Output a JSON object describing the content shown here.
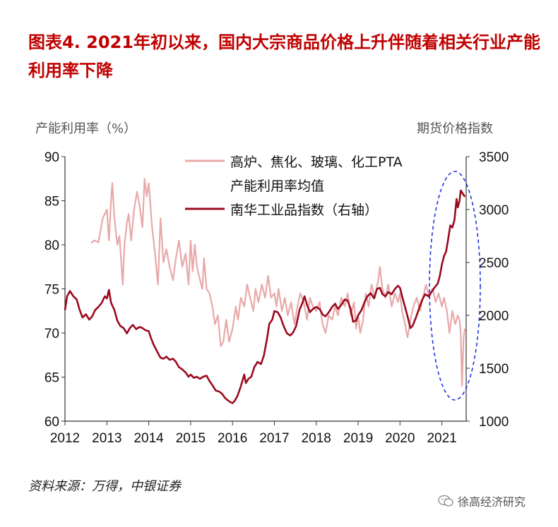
{
  "title": "图表4.  2021年初以来，国内大宗商品价格上升伴随着相关行业产能利用率下降",
  "left_axis_title": "产能利用率（%）",
  "right_axis_title": "期货价格指数",
  "source": "资料来源：万得，中银证券",
  "watermark": "徐高经济研究",
  "colors": {
    "title": "#c00000",
    "capacity_series": "#e8a9a9",
    "index_series": "#9b0a1e",
    "highlight": "#2233dd"
  },
  "chart_data": {
    "type": "line",
    "x_range": [
      2012.0,
      2021.58
    ],
    "x_ticks": [
      "2012",
      "2013",
      "2014",
      "2015",
      "2016",
      "2017",
      "2018",
      "2019",
      "2020",
      "2021"
    ],
    "y_left_ticks": [
      "60",
      "65",
      "70",
      "75",
      "80",
      "85",
      "90"
    ],
    "y_right_ticks": [
      "1000",
      "1500",
      "2000",
      "2500",
      "3000",
      "3500"
    ],
    "y_left_range": [
      60,
      90
    ],
    "y_right_range": [
      1000,
      3500
    ],
    "legend": [
      {
        "label_lines": [
          "高炉、焦化、玻璃、化工PTA",
          "产能利用率均值"
        ],
        "axis": "left"
      },
      {
        "label_lines": [
          "南华工业品指数（右轴）"
        ],
        "axis": "right"
      }
    ],
    "series": [
      {
        "name": "高炉、焦化、玻璃、化工PTA产能利用率均值",
        "axis": "left",
        "points": [
          [
            2012.62,
            80.2
          ],
          [
            2012.7,
            80.5
          ],
          [
            2012.8,
            80.3
          ],
          [
            2012.9,
            83.0
          ],
          [
            2013.0,
            84.0
          ],
          [
            2013.05,
            80.5
          ],
          [
            2013.1,
            85.0
          ],
          [
            2013.13,
            87.0
          ],
          [
            2013.18,
            83.0
          ],
          [
            2013.25,
            80.0
          ],
          [
            2013.3,
            81.0
          ],
          [
            2013.38,
            75.5
          ],
          [
            2013.42,
            80.0
          ],
          [
            2013.48,
            82.5
          ],
          [
            2013.52,
            83.5
          ],
          [
            2013.58,
            80.5
          ],
          [
            2013.65,
            84.0
          ],
          [
            2013.72,
            86.0
          ],
          [
            2013.78,
            84.5
          ],
          [
            2013.85,
            82.0
          ],
          [
            2013.9,
            87.5
          ],
          [
            2013.95,
            85.5
          ],
          [
            2014.0,
            87.0
          ],
          [
            2014.08,
            82.0
          ],
          [
            2014.15,
            79.0
          ],
          [
            2014.22,
            75.5
          ],
          [
            2014.28,
            83.0
          ],
          [
            2014.35,
            78.0
          ],
          [
            2014.42,
            79.5
          ],
          [
            2014.5,
            77.5
          ],
          [
            2014.58,
            76.0
          ],
          [
            2014.65,
            78.5
          ],
          [
            2014.72,
            80.5
          ],
          [
            2014.8,
            77.5
          ],
          [
            2014.88,
            79.0
          ],
          [
            2014.95,
            75.5
          ],
          [
            2015.0,
            80.5
          ],
          [
            2015.05,
            77.0
          ],
          [
            2015.1,
            80.0
          ],
          [
            2015.15,
            77.5
          ],
          [
            2015.2,
            76.5
          ],
          [
            2015.28,
            75.0
          ],
          [
            2015.32,
            78.5
          ],
          [
            2015.38,
            75.0
          ],
          [
            2015.45,
            74.5
          ],
          [
            2015.52,
            73.0
          ],
          [
            2015.58,
            71.0
          ],
          [
            2015.65,
            72.0
          ],
          [
            2015.72,
            68.5
          ],
          [
            2015.78,
            69.0
          ],
          [
            2015.85,
            71.5
          ],
          [
            2015.92,
            69.0
          ],
          [
            2016.0,
            70.5
          ],
          [
            2016.08,
            73.0
          ],
          [
            2016.13,
            71.5
          ],
          [
            2016.2,
            74.0
          ],
          [
            2016.28,
            73.0
          ],
          [
            2016.35,
            75.5
          ],
          [
            2016.42,
            74.0
          ],
          [
            2016.5,
            72.5
          ],
          [
            2016.55,
            75.0
          ],
          [
            2016.62,
            73.5
          ],
          [
            2016.7,
            75.5
          ],
          [
            2016.78,
            74.0
          ],
          [
            2016.85,
            76.5
          ],
          [
            2016.92,
            74.0
          ],
          [
            2017.0,
            74.5
          ],
          [
            2017.05,
            73.0
          ],
          [
            2017.1,
            75.0
          ],
          [
            2017.18,
            72.5
          ],
          [
            2017.25,
            74.0
          ],
          [
            2017.32,
            72.0
          ],
          [
            2017.4,
            73.5
          ],
          [
            2017.48,
            71.0
          ],
          [
            2017.55,
            73.0
          ],
          [
            2017.62,
            74.5
          ],
          [
            2017.7,
            73.5
          ],
          [
            2017.78,
            71.5
          ],
          [
            2017.85,
            74.0
          ],
          [
            2017.92,
            73.0
          ],
          [
            2018.0,
            72.5
          ],
          [
            2018.08,
            73.5
          ],
          [
            2018.15,
            71.0
          ],
          [
            2018.22,
            70.0
          ],
          [
            2018.3,
            72.0
          ],
          [
            2018.38,
            71.5
          ],
          [
            2018.45,
            73.0
          ],
          [
            2018.52,
            72.0
          ],
          [
            2018.6,
            74.0
          ],
          [
            2018.68,
            73.0
          ],
          [
            2018.75,
            74.5
          ],
          [
            2018.82,
            72.0
          ],
          [
            2018.9,
            73.5
          ],
          [
            2018.95,
            70.5
          ],
          [
            2019.0,
            72.0
          ],
          [
            2019.05,
            70.0
          ],
          [
            2019.12,
            71.5
          ],
          [
            2019.18,
            74.5
          ],
          [
            2019.25,
            73.0
          ],
          [
            2019.32,
            75.5
          ],
          [
            2019.4,
            74.0
          ],
          [
            2019.48,
            76.0
          ],
          [
            2019.52,
            77.5
          ],
          [
            2019.58,
            75.0
          ],
          [
            2019.65,
            74.0
          ],
          [
            2019.72,
            75.5
          ],
          [
            2019.8,
            73.0
          ],
          [
            2019.88,
            74.5
          ],
          [
            2019.95,
            73.5
          ],
          [
            2020.0,
            74.5
          ],
          [
            2020.05,
            72.5
          ],
          [
            2020.12,
            71.0
          ],
          [
            2020.18,
            69.5
          ],
          [
            2020.25,
            71.5
          ],
          [
            2020.32,
            73.0
          ],
          [
            2020.4,
            74.0
          ],
          [
            2020.48,
            72.5
          ],
          [
            2020.55,
            74.0
          ],
          [
            2020.62,
            75.5
          ],
          [
            2020.7,
            74.0
          ],
          [
            2020.78,
            75.0
          ],
          [
            2020.85,
            73.5
          ],
          [
            2020.92,
            74.5
          ],
          [
            2021.0,
            73.0
          ],
          [
            2021.05,
            74.0
          ],
          [
            2021.12,
            72.5
          ],
          [
            2021.18,
            70.0
          ],
          [
            2021.25,
            72.5
          ],
          [
            2021.32,
            71.0
          ],
          [
            2021.38,
            72.0
          ],
          [
            2021.42,
            71.5
          ],
          [
            2021.45,
            70.0
          ],
          [
            2021.48,
            64.0
          ],
          [
            2021.52,
            69.5
          ],
          [
            2021.55,
            70.5
          ]
        ]
      },
      {
        "name": "南华工业品指数",
        "axis": "right",
        "points": [
          [
            2012.0,
            2050
          ],
          [
            2012.05,
            2180
          ],
          [
            2012.12,
            2230
          ],
          [
            2012.2,
            2180
          ],
          [
            2012.28,
            2150
          ],
          [
            2012.35,
            2050
          ],
          [
            2012.42,
            1980
          ],
          [
            2012.5,
            2010
          ],
          [
            2012.58,
            1960
          ],
          [
            2012.65,
            1990
          ],
          [
            2012.72,
            2050
          ],
          [
            2012.8,
            2080
          ],
          [
            2012.88,
            2120
          ],
          [
            2012.95,
            2180
          ],
          [
            2013.0,
            2160
          ],
          [
            2013.05,
            2240
          ],
          [
            2013.1,
            2120
          ],
          [
            2013.18,
            2050
          ],
          [
            2013.25,
            1950
          ],
          [
            2013.32,
            1900
          ],
          [
            2013.4,
            1880
          ],
          [
            2013.48,
            1830
          ],
          [
            2013.55,
            1880
          ],
          [
            2013.62,
            1910
          ],
          [
            2013.7,
            1870
          ],
          [
            2013.78,
            1890
          ],
          [
            2013.85,
            1880
          ],
          [
            2013.92,
            1860
          ],
          [
            2014.0,
            1850
          ],
          [
            2014.05,
            1790
          ],
          [
            2014.12,
            1720
          ],
          [
            2014.2,
            1660
          ],
          [
            2014.28,
            1600
          ],
          [
            2014.35,
            1590
          ],
          [
            2014.42,
            1610
          ],
          [
            2014.5,
            1580
          ],
          [
            2014.58,
            1590
          ],
          [
            2014.65,
            1560
          ],
          [
            2014.72,
            1510
          ],
          [
            2014.8,
            1490
          ],
          [
            2014.88,
            1460
          ],
          [
            2014.95,
            1420
          ],
          [
            2015.0,
            1440
          ],
          [
            2015.08,
            1410
          ],
          [
            2015.15,
            1420
          ],
          [
            2015.22,
            1400
          ],
          [
            2015.3,
            1420
          ],
          [
            2015.38,
            1430
          ],
          [
            2015.45,
            1380
          ],
          [
            2015.52,
            1340
          ],
          [
            2015.6,
            1290
          ],
          [
            2015.68,
            1280
          ],
          [
            2015.75,
            1260
          ],
          [
            2015.82,
            1220
          ],
          [
            2015.88,
            1200
          ],
          [
            2015.95,
            1180
          ],
          [
            2016.0,
            1170
          ],
          [
            2016.05,
            1190
          ],
          [
            2016.12,
            1240
          ],
          [
            2016.2,
            1330
          ],
          [
            2016.28,
            1440
          ],
          [
            2016.32,
            1360
          ],
          [
            2016.38,
            1400
          ],
          [
            2016.45,
            1420
          ],
          [
            2016.52,
            1510
          ],
          [
            2016.6,
            1560
          ],
          [
            2016.68,
            1540
          ],
          [
            2016.75,
            1620
          ],
          [
            2016.82,
            1770
          ],
          [
            2016.88,
            1920
          ],
          [
            2016.95,
            1960
          ],
          [
            2017.0,
            2040
          ],
          [
            2017.08,
            2030
          ],
          [
            2017.15,
            1980
          ],
          [
            2017.22,
            1900
          ],
          [
            2017.3,
            1830
          ],
          [
            2017.38,
            1810
          ],
          [
            2017.45,
            1840
          ],
          [
            2017.52,
            1900
          ],
          [
            2017.6,
            2050
          ],
          [
            2017.68,
            2130
          ],
          [
            2017.72,
            2180
          ],
          [
            2017.78,
            2100
          ],
          [
            2017.85,
            2030
          ],
          [
            2017.92,
            2060
          ],
          [
            2018.0,
            2080
          ],
          [
            2018.08,
            2060
          ],
          [
            2018.15,
            2010
          ],
          [
            2018.22,
            1990
          ],
          [
            2018.3,
            2030
          ],
          [
            2018.38,
            2080
          ],
          [
            2018.45,
            2110
          ],
          [
            2018.52,
            2060
          ],
          [
            2018.6,
            2100
          ],
          [
            2018.68,
            2150
          ],
          [
            2018.75,
            2140
          ],
          [
            2018.82,
            2060
          ],
          [
            2018.88,
            1940
          ],
          [
            2018.95,
            1950
          ],
          [
            2019.0,
            2000
          ],
          [
            2019.08,
            2050
          ],
          [
            2019.15,
            2120
          ],
          [
            2019.22,
            2180
          ],
          [
            2019.3,
            2210
          ],
          [
            2019.38,
            2160
          ],
          [
            2019.45,
            2250
          ],
          [
            2019.52,
            2260
          ],
          [
            2019.58,
            2200
          ],
          [
            2019.65,
            2180
          ],
          [
            2019.72,
            2220
          ],
          [
            2019.8,
            2200
          ],
          [
            2019.88,
            2250
          ],
          [
            2019.95,
            2280
          ],
          [
            2020.0,
            2260
          ],
          [
            2020.05,
            2180
          ],
          [
            2020.12,
            2080
          ],
          [
            2020.18,
            1990
          ],
          [
            2020.25,
            1880
          ],
          [
            2020.3,
            1900
          ],
          [
            2020.38,
            1980
          ],
          [
            2020.45,
            2060
          ],
          [
            2020.52,
            2140
          ],
          [
            2020.6,
            2200
          ],
          [
            2020.68,
            2180
          ],
          [
            2020.75,
            2220
          ],
          [
            2020.82,
            2260
          ],
          [
            2020.9,
            2300
          ],
          [
            2020.95,
            2370
          ],
          [
            2021.0,
            2480
          ],
          [
            2021.05,
            2560
          ],
          [
            2021.1,
            2600
          ],
          [
            2021.15,
            2720
          ],
          [
            2021.2,
            2850
          ],
          [
            2021.25,
            2830
          ],
          [
            2021.3,
            2900
          ],
          [
            2021.35,
            3100
          ],
          [
            2021.38,
            3020
          ],
          [
            2021.42,
            3080
          ],
          [
            2021.45,
            3180
          ],
          [
            2021.5,
            3150
          ],
          [
            2021.55,
            3120
          ]
        ]
      }
    ]
  }
}
